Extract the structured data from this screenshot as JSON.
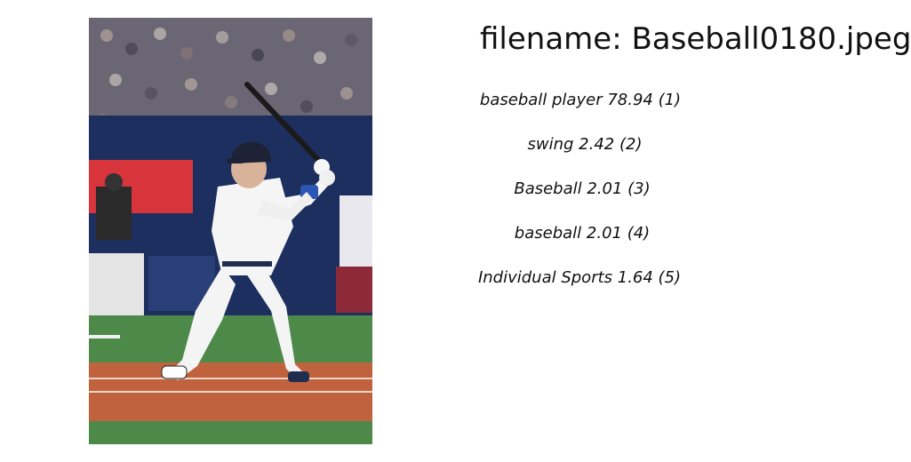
{
  "filename_line": "filename: Baseball0180.jpeg",
  "predictions": [
    {
      "label": "baseball player 78.94 (1)"
    },
    {
      "label": "swing  2.42 (2)"
    },
    {
      "label": "Baseball  2.01 (3)"
    },
    {
      "label": "baseball  2.01 (4)"
    },
    {
      "label": "Individual Sports  1.64 (5)"
    }
  ],
  "photo": {
    "subject": "baseball batter in white uniform and navy helmet, bat raised in batting stance, stadium crowd behind",
    "colors": {
      "grass": "#4d8a4a",
      "dirt": "#c0623e",
      "wall": "#1d2f5e",
      "banner": "#d8343c",
      "crowd": "#6b6673"
    }
  }
}
